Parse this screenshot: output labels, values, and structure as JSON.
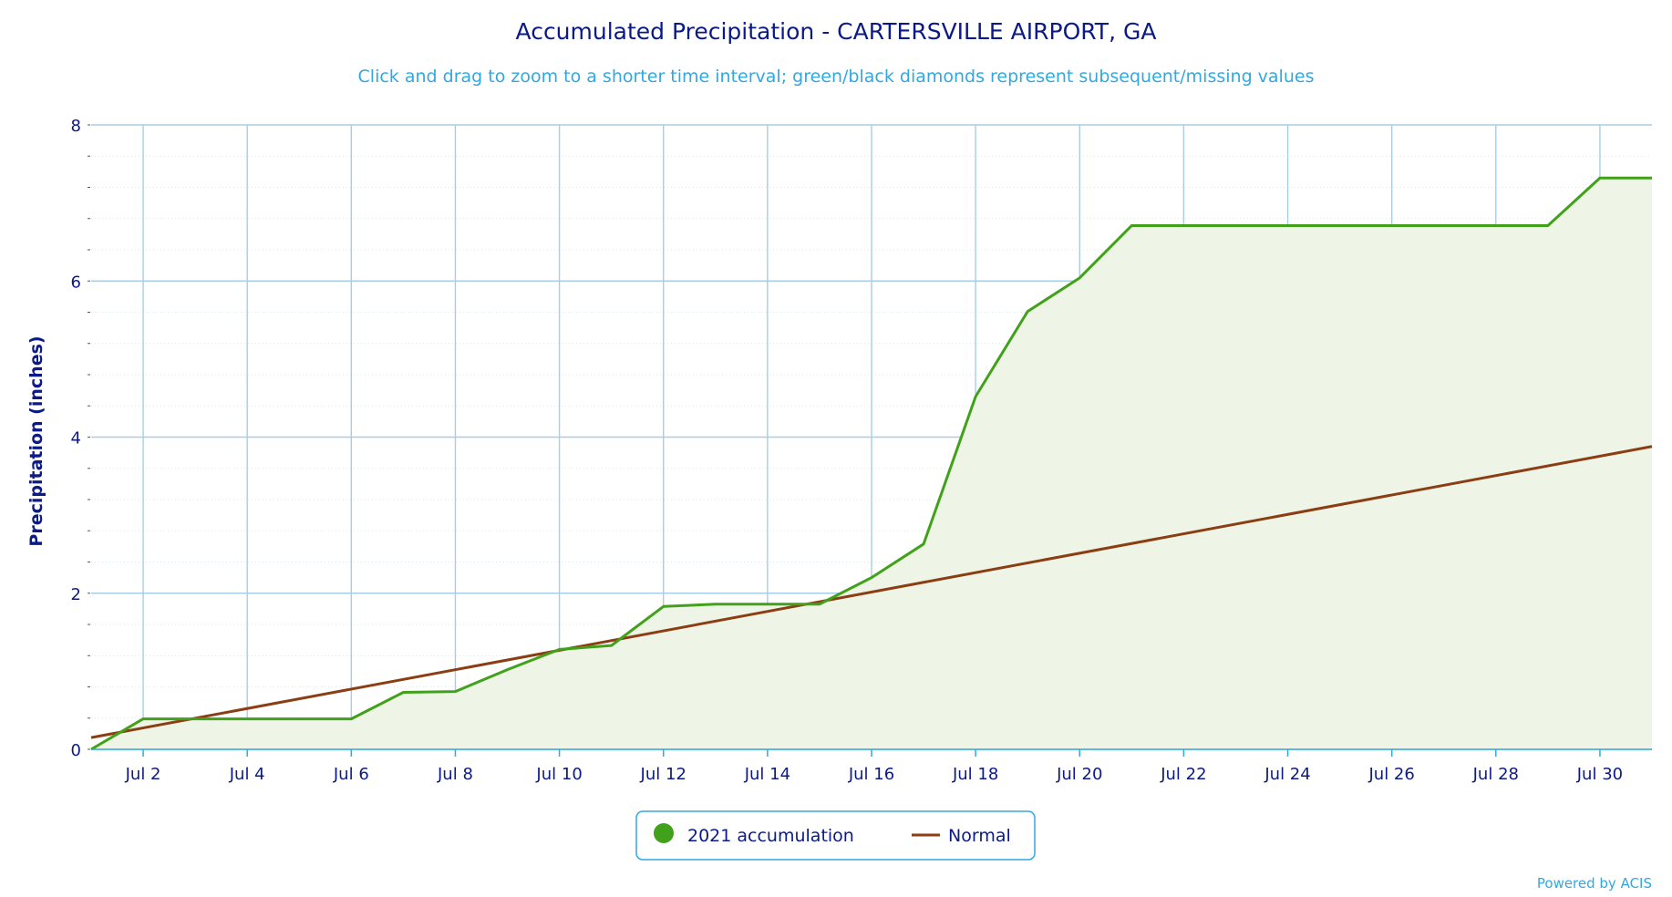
{
  "chart_data": {
    "type": "area",
    "title": "Accumulated Precipitation - CARTERSVILLE AIRPORT, GA",
    "subtitle": "Click and drag to zoom to a shorter time interval; green/black diamonds represent subsequent/missing values",
    "ylabel": "Precipitation (inches)",
    "xlabel": "",
    "x_ticks": [
      "Jul 2",
      "Jul 4",
      "Jul 6",
      "Jul 8",
      "Jul 10",
      "Jul 12",
      "Jul 14",
      "Jul 16",
      "Jul 18",
      "Jul 20",
      "Jul 22",
      "Jul 24",
      "Jul 26",
      "Jul 28",
      "Jul 30"
    ],
    "x_tick_days": [
      2,
      4,
      6,
      8,
      10,
      12,
      14,
      16,
      18,
      20,
      22,
      24,
      26,
      28,
      30
    ],
    "y_ticks": [
      "0",
      "2",
      "4",
      "6",
      "8"
    ],
    "xlim": [
      1,
      31
    ],
    "ylim": [
      0,
      8
    ],
    "grid": true,
    "legend_position": "bottom-center",
    "series": [
      {
        "name": "2021 accumulation",
        "color": "#41a11a",
        "fill": "#eef5e6",
        "x": [
          1,
          2,
          3,
          4,
          5,
          6,
          7,
          8,
          9,
          10,
          11,
          12,
          13,
          14,
          15,
          16,
          17,
          18,
          19,
          20,
          21,
          22,
          23,
          24,
          25,
          26,
          27,
          28,
          29,
          30,
          31
        ],
        "values": [
          0.0,
          0.39,
          0.39,
          0.39,
          0.39,
          0.39,
          0.73,
          0.74,
          1.02,
          1.28,
          1.33,
          1.83,
          1.86,
          1.86,
          1.86,
          2.2,
          2.63,
          4.52,
          5.61,
          6.04,
          6.71,
          6.71,
          6.71,
          6.71,
          6.71,
          6.71,
          6.71,
          6.71,
          6.71,
          7.32,
          7.32
        ]
      },
      {
        "name": "Normal",
        "color": "#8b3e13",
        "x": [
          1,
          31
        ],
        "values": [
          0.15,
          3.88
        ]
      }
    ]
  },
  "credit": "Powered by ACIS"
}
